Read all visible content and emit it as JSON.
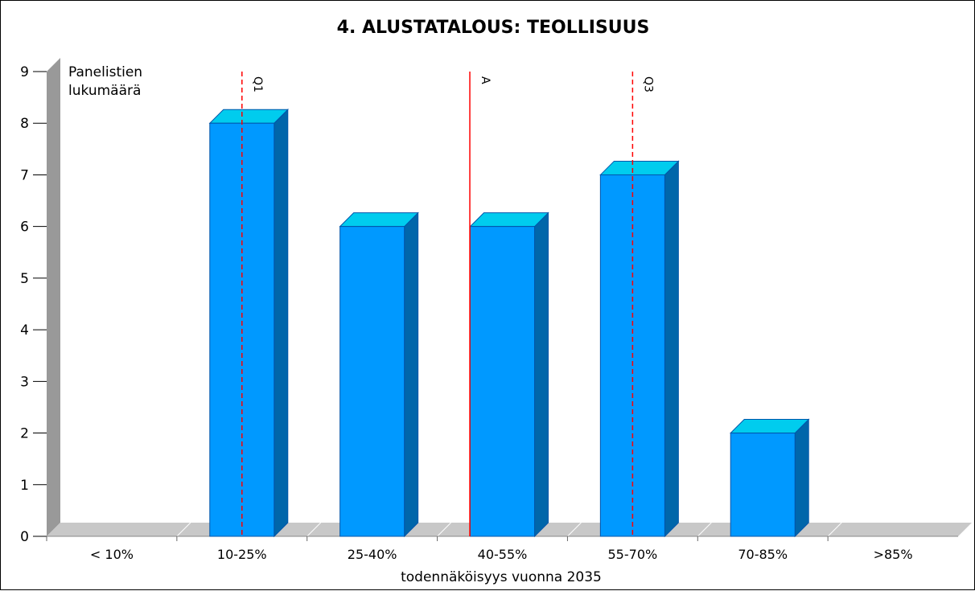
{
  "chart_data": {
    "type": "bar",
    "title": "4. ALUSTATALOUS: TEOLLISUUS",
    "xlabel": "todennäköisyys vuonna 2035",
    "ylabel_lines": [
      "Panelistien",
      "lukumäärä"
    ],
    "categories": [
      "< 10%",
      "10-25%",
      "25-40%",
      "40-55%",
      "55-70%",
      "70-85%",
      ">85%"
    ],
    "values": [
      0,
      8,
      6,
      6,
      7,
      2,
      0
    ],
    "ylim": [
      0,
      9
    ],
    "yticks": [
      "0",
      "1",
      "2",
      "3",
      "4",
      "5",
      "6",
      "7",
      "8",
      "9"
    ],
    "grid": false,
    "markers": [
      {
        "label": "Q1",
        "position": 1.5,
        "style": "dashed",
        "color": "#ff0000"
      },
      {
        "label": "A",
        "position": 3.25,
        "style": "solid",
        "color": "#ff0000"
      },
      {
        "label": "Q3",
        "position": 4.5,
        "style": "dashed",
        "color": "#ff0000"
      }
    ],
    "colors": {
      "bar_front": "#0099ff",
      "bar_top": "#00ccee",
      "bar_side": "#0066aa",
      "bar_outline": "#0055aa",
      "wall": "#999999",
      "floor": "#c8c8c8"
    }
  }
}
